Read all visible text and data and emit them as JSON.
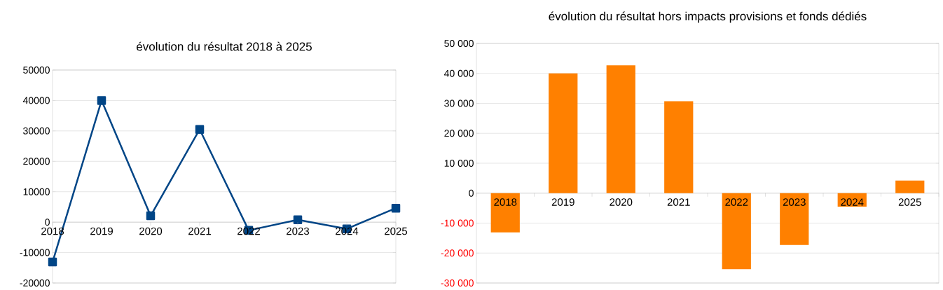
{
  "chart_data": [
    {
      "type": "line",
      "title": "évolution du résultat 2018 à 2025",
      "categories": [
        "2018",
        "2019",
        "2020",
        "2021",
        "2022",
        "2023",
        "2024",
        "2025"
      ],
      "values": [
        -13100,
        40000,
        2100,
        30500,
        -2700,
        800,
        -2200,
        4600
      ],
      "color": "#004586",
      "marker": "square",
      "ylim": [
        -20000,
        50000
      ],
      "yticks": [
        -20000,
        -10000,
        0,
        10000,
        20000,
        30000,
        40000,
        50000
      ],
      "grid": "y"
    },
    {
      "type": "bar",
      "title": "évolution du résultat hors impacts provisions et fonds dédiés",
      "categories": [
        "2018",
        "2019",
        "2020",
        "2021",
        "2022",
        "2023",
        "2024",
        "2025"
      ],
      "values": [
        -13100,
        40000,
        42700,
        30700,
        -25400,
        -17300,
        -4500,
        4200
      ],
      "color": "#ff8000",
      "ylim": [
        -30000,
        50000
      ],
      "yticks": [
        {
          "value": -30000,
          "label": "-30 000"
        },
        {
          "value": -20000,
          "label": "-20 000"
        },
        {
          "value": -10000,
          "label": "-10 000"
        },
        {
          "value": 0,
          "label": "0"
        },
        {
          "value": 10000,
          "label": "10 000"
        },
        {
          "value": 20000,
          "label": "20 000"
        },
        {
          "value": 30000,
          "label": "30 000"
        },
        {
          "value": 40000,
          "label": "40 000"
        },
        {
          "value": 50000,
          "label": "50 000"
        }
      ],
      "grid": "y"
    }
  ]
}
